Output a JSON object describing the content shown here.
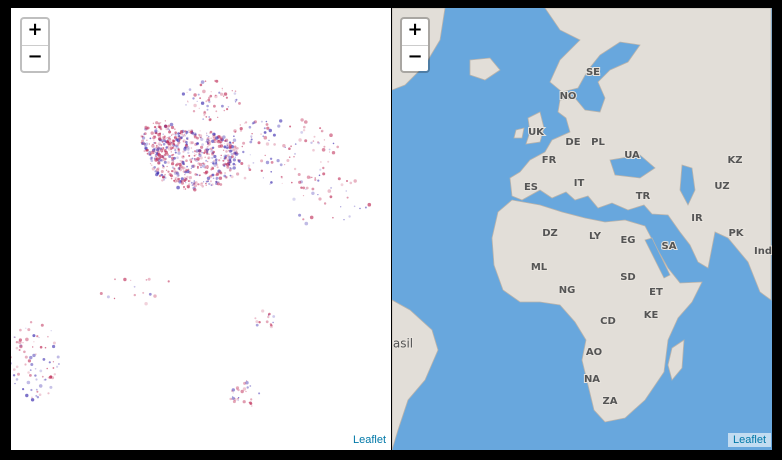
{
  "left_map": {
    "zoom_in": "+",
    "zoom_out": "−",
    "attribution": "Leaflet"
  },
  "right_map": {
    "zoom_in": "+",
    "zoom_out": "−",
    "attribution": "Leaflet",
    "labels": [
      "SE",
      "NO",
      "UK",
      "DE",
      "PL",
      "FR",
      "UA",
      "KZ",
      "ES",
      "IT",
      "TR",
      "UZ",
      "IR",
      "PK",
      "Ind",
      "DZ",
      "LY",
      "EG",
      "SA",
      "ML",
      "NG",
      "SD",
      "ET",
      "CD",
      "KE",
      "AO",
      "NA",
      "ZA",
      "asil"
    ]
  }
}
